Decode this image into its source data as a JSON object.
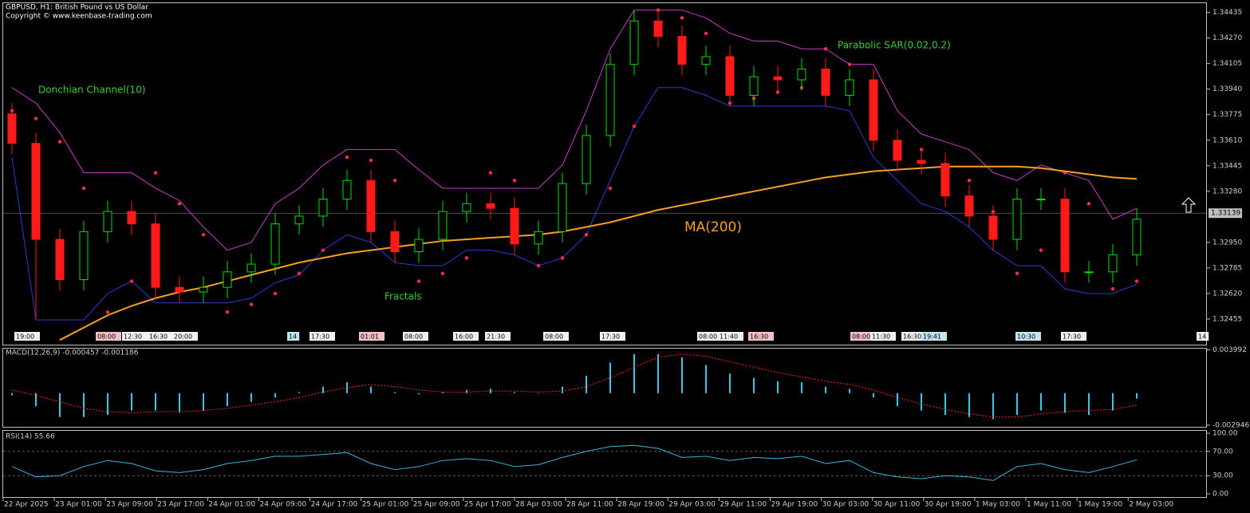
{
  "chart_data": [
    {
      "type": "candlestick",
      "title": "GBPUSD, H1:  British Pound vs US Dollar",
      "subtitle": "Copyright © www.keenbase-trading.com",
      "open": [
        1.3378,
        1.3359,
        1.3297,
        1.3271,
        1.3302,
        1.3315,
        1.3307,
        1.3266,
        1.3263,
        1.3266,
        1.3276,
        1.3281,
        1.3307,
        1.3312,
        1.3323,
        1.3335,
        1.3302,
        1.3289,
        1.3297,
        1.3315,
        1.332,
        1.3317,
        1.3294,
        1.3302,
        1.3333,
        1.3364,
        1.341,
        1.3438,
        1.3428,
        1.341,
        1.3415,
        1.339,
        1.3402,
        1.34,
        1.3407,
        1.339,
        1.34,
        1.3361,
        1.3348,
        1.3346,
        1.3325,
        1.3312,
        1.3297,
        1.3323,
        1.3323,
        1.3276,
        1.3276,
        1.3287
      ],
      "high": [
        1.3385,
        1.3366,
        1.3304,
        1.3309,
        1.3322,
        1.3322,
        1.3314,
        1.3273,
        1.3273,
        1.3283,
        1.3288,
        1.3314,
        1.3319,
        1.333,
        1.3342,
        1.3342,
        1.3309,
        1.3304,
        1.3322,
        1.3327,
        1.3327,
        1.3324,
        1.3309,
        1.334,
        1.3371,
        1.3417,
        1.3445,
        1.3445,
        1.3435,
        1.3422,
        1.3422,
        1.3409,
        1.3409,
        1.3414,
        1.3414,
        1.3407,
        1.3407,
        1.3368,
        1.3355,
        1.3353,
        1.3332,
        1.3319,
        1.333,
        1.333,
        1.333,
        1.3283,
        1.3294,
        1.3317
      ],
      "low": [
        1.3352,
        1.3245,
        1.3264,
        1.3264,
        1.3295,
        1.33,
        1.3259,
        1.3256,
        1.3256,
        1.3259,
        1.3269,
        1.3274,
        1.33,
        1.3305,
        1.3316,
        1.3295,
        1.3282,
        1.3282,
        1.329,
        1.3308,
        1.331,
        1.3287,
        1.3287,
        1.3295,
        1.3326,
        1.3357,
        1.3403,
        1.3421,
        1.3403,
        1.3403,
        1.3383,
        1.3383,
        1.3393,
        1.3393,
        1.3383,
        1.3383,
        1.3354,
        1.3341,
        1.3339,
        1.3318,
        1.3305,
        1.329,
        1.329,
        1.3316,
        1.3269,
        1.3269,
        1.3269,
        1.328
      ],
      "close": [
        1.3359,
        1.3297,
        1.3271,
        1.3302,
        1.3315,
        1.3307,
        1.3266,
        1.3263,
        1.3266,
        1.3276,
        1.3281,
        1.3307,
        1.3312,
        1.3323,
        1.3335,
        1.3302,
        1.3289,
        1.3297,
        1.3315,
        1.332,
        1.3317,
        1.3294,
        1.3302,
        1.3333,
        1.3364,
        1.341,
        1.3438,
        1.3428,
        1.341,
        1.3415,
        1.339,
        1.3402,
        1.34,
        1.3407,
        1.339,
        1.34,
        1.3361,
        1.3348,
        1.3346,
        1.3325,
        1.3312,
        1.3297,
        1.3323,
        1.3323,
        1.3276,
        1.3276,
        1.3287,
        1.331
      ],
      "up_color": "#00e000",
      "down_color": "#ff1a1a",
      "overlays": [
        {
          "name": "Donchian Channel(10)",
          "kind": "channel",
          "color_upper": "#c83cc8",
          "color_lower": "#2a3cd0",
          "upper": [
            1.3395,
            1.3385,
            1.3366,
            1.334,
            1.334,
            1.334,
            1.333,
            1.3322,
            1.3305,
            1.329,
            1.3295,
            1.332,
            1.333,
            1.3345,
            1.3355,
            1.3355,
            1.3355,
            1.3342,
            1.333,
            1.333,
            1.333,
            1.333,
            1.333,
            1.3345,
            1.338,
            1.342,
            1.3445,
            1.3445,
            1.3445,
            1.344,
            1.343,
            1.3425,
            1.3425,
            1.342,
            1.342,
            1.341,
            1.341,
            1.338,
            1.3365,
            1.336,
            1.3355,
            1.334,
            1.3335,
            1.3345,
            1.334,
            1.3335,
            1.331,
            1.3317
          ],
          "lower": [
            1.335,
            1.3245,
            1.3245,
            1.3245,
            1.3262,
            1.327,
            1.3256,
            1.3256,
            1.3256,
            1.3256,
            1.3259,
            1.3269,
            1.3274,
            1.329,
            1.33,
            1.3295,
            1.3282,
            1.328,
            1.328,
            1.329,
            1.329,
            1.3287,
            1.328,
            1.3285,
            1.33,
            1.3335,
            1.337,
            1.3395,
            1.3395,
            1.339,
            1.3383,
            1.3383,
            1.3383,
            1.3383,
            1.3383,
            1.338,
            1.335,
            1.3335,
            1.332,
            1.3315,
            1.3305,
            1.329,
            1.328,
            1.328,
            1.3265,
            1.3262,
            1.3262,
            1.3268
          ]
        },
        {
          "name": "Parabolic SAR(0.02,0.2)",
          "kind": "dots",
          "color": "#ff2a55",
          "values": [
            1.338,
            1.3375,
            1.336,
            1.333,
            1.325,
            1.327,
            1.334,
            1.332,
            1.33,
            1.325,
            1.3255,
            1.3262,
            1.3275,
            1.329,
            1.335,
            1.3348,
            1.3335,
            1.327,
            1.3275,
            1.3285,
            1.334,
            1.3335,
            1.328,
            1.3285,
            1.33,
            1.333,
            1.337,
            1.3445,
            1.344,
            1.343,
            1.3385,
            1.3388,
            1.3392,
            1.3395,
            1.342,
            1.341,
            1.3395,
            1.336,
            1.3355,
            1.3345,
            1.3335,
            1.3315,
            1.3275,
            1.329,
            1.334,
            1.332,
            1.3265,
            1.327
          ]
        },
        {
          "name": "MA(200)",
          "kind": "line",
          "color": "#f5a020",
          "values": [
            null,
            null,
            1.3232,
            1.324,
            1.3248,
            1.3254,
            1.3259,
            1.3263,
            1.3266,
            1.327,
            1.3274,
            1.3278,
            1.3282,
            1.3285,
            1.3288,
            1.329,
            1.3292,
            1.3294,
            1.3296,
            1.3297,
            1.3298,
            1.3299,
            1.33,
            1.3302,
            1.3305,
            1.3308,
            1.3312,
            1.3316,
            1.3319,
            1.3322,
            1.3325,
            1.3328,
            1.3331,
            1.3334,
            1.3337,
            1.3339,
            1.3341,
            1.3342,
            1.3343,
            1.3344,
            1.3344,
            1.3344,
            1.3344,
            1.3343,
            1.3341,
            1.3339,
            1.3337,
            1.3336
          ]
        }
      ],
      "annotations": [
        "Fractals"
      ],
      "last_price": {
        "value": 1.33139,
        "label": "1.33139"
      },
      "ylim": [
        1.3229,
        1.345
      ],
      "yticks": [
        {
          "value": 1.34435,
          "label": "1.34435"
        },
        {
          "value": 1.3427,
          "label": "1.34270"
        },
        {
          "value": 1.34105,
          "label": "1.34105"
        },
        {
          "value": 1.3394,
          "label": "1.33940"
        },
        {
          "value": 1.33775,
          "label": "1.33775"
        },
        {
          "value": 1.3361,
          "label": "1.33610"
        },
        {
          "value": 1.33445,
          "label": "1.33445"
        },
        {
          "value": 1.3328,
          "label": "1.33280"
        },
        {
          "value": 1.3295,
          "label": "1.32950"
        },
        {
          "value": 1.32785,
          "label": "1.32785"
        },
        {
          "value": 1.3262,
          "label": "1.32620"
        },
        {
          "value": 1.32455,
          "label": "1.32455"
        }
      ],
      "event_labels": [
        "19:00",
        "08:00",
        "12:30",
        "16:30",
        "20:00",
        "14",
        "17:30",
        "01:01",
        "08:00",
        "16:00",
        "21:30",
        "08:00",
        "17:30",
        "08:00",
        "11:40",
        "16:30",
        "08:00",
        "11:30",
        "16:30",
        "19:41",
        "10:30",
        "17:30",
        "14"
      ]
    },
    {
      "type": "macd",
      "title": "MACD(12,26,9) -0.000457 -0.001186",
      "hist_color": "#3cc8e6",
      "signal_color": "#ff2020",
      "histogram": [
        -0.0002,
        -0.0012,
        -0.0022,
        -0.0022,
        -0.002,
        -0.0016,
        -0.0016,
        -0.0018,
        -0.0016,
        -0.0012,
        -0.0008,
        -0.0004,
        0.0001,
        0.0006,
        0.001,
        0.0006,
        0.0001,
        -0.0001,
        0.0001,
        0.0003,
        0.0004,
        0.0001,
        0.0,
        0.0006,
        0.0016,
        0.0028,
        0.0036,
        0.0036,
        0.0033,
        0.0026,
        0.0018,
        0.0014,
        0.0011,
        0.001,
        0.0006,
        0.0004,
        -0.0004,
        -0.0012,
        -0.0016,
        -0.002,
        -0.0022,
        -0.0024,
        -0.002,
        -0.0016,
        -0.0018,
        -0.002,
        -0.0016,
        -0.0005
      ],
      "signal": [
        0.0003,
        -0.0002,
        -0.0008,
        -0.0014,
        -0.0017,
        -0.0018,
        -0.0017,
        -0.0017,
        -0.0016,
        -0.0014,
        -0.0011,
        -0.0008,
        -0.0004,
        0.0001,
        0.0005,
        0.0008,
        0.0006,
        0.0003,
        0.0001,
        0.0001,
        0.0002,
        0.0002,
        0.0001,
        0.0002,
        0.0006,
        0.0014,
        0.0024,
        0.0033,
        0.0036,
        0.0034,
        0.0029,
        0.0024,
        0.0019,
        0.0015,
        0.0011,
        0.0008,
        0.0003,
        -0.0004,
        -0.001,
        -0.0015,
        -0.0019,
        -0.0022,
        -0.0022,
        -0.0019,
        -0.0017,
        -0.0016,
        -0.0015,
        -0.0011
      ],
      "ylim": [
        -0.0031,
        0.0041
      ],
      "yticks": [
        0.003992,
        -0.002946
      ]
    },
    {
      "type": "line",
      "title": "RSI(14) 55.66",
      "color": "#3cb4d8",
      "values": [
        45,
        28,
        30,
        45,
        55,
        50,
        38,
        35,
        40,
        50,
        55,
        62,
        62,
        65,
        68,
        50,
        40,
        45,
        55,
        58,
        55,
        45,
        48,
        60,
        70,
        78,
        80,
        75,
        60,
        62,
        55,
        60,
        58,
        62,
        50,
        55,
        35,
        28,
        25,
        30,
        28,
        22,
        45,
        50,
        40,
        35,
        45,
        56
      ],
      "ylim": [
        0,
        100
      ],
      "yticks": [
        {
          "value": 100,
          "label": "100.00"
        },
        {
          "value": 70,
          "label": "70.00"
        },
        {
          "value": 30,
          "label": "30.00"
        },
        {
          "value": 0,
          "label": "0.00"
        }
      ],
      "x_labels": [
        "22 Apr 2025",
        "23 Apr 01:00",
        "23 Apr 09:00",
        "23 Apr 17:00",
        "24 Apr 01:00",
        "24 Apr 09:00",
        "24 Apr 17:00",
        "25 Apr 01:00",
        "25 Apr 09:00",
        "25 Apr 17:00",
        "28 Apr 03:00",
        "28 Apr 11:00",
        "28 Apr 19:00",
        "29 Apr 03:00",
        "29 Apr 11:00",
        "29 Apr 19:00",
        "30 Apr 03:00",
        "30 Apr 11:00",
        "30 Apr 19:00",
        "1 May 03:00",
        "1 May 11:00",
        "1 May 19:00",
        "2 May 03:00"
      ]
    }
  ]
}
